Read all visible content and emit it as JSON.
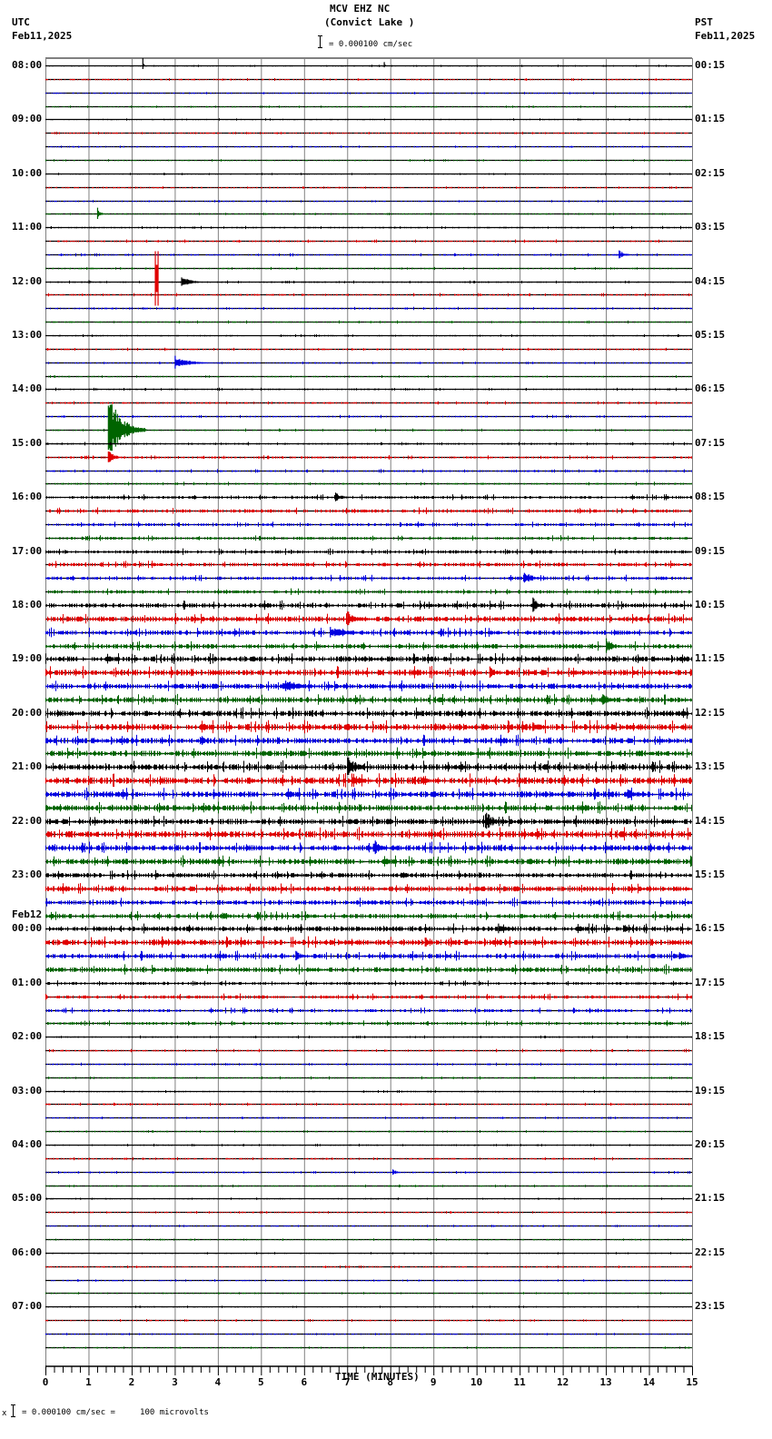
{
  "header": {
    "station": "MCV EHZ NC",
    "location": "(Convict Lake )",
    "left_tz": "UTC",
    "left_date": "Feb11,2025",
    "right_tz": "PST",
    "right_date": "Feb11,2025",
    "scale_text": "= 0.000100 cm/sec"
  },
  "footer": {
    "scale_text": "= 0.000100 cm/sec =     100 microvolts",
    "prefix": "x"
  },
  "colors": {
    "trace_cycle": [
      "#000000",
      "#e00000",
      "#0000e0",
      "#006400"
    ],
    "grid": "#808080",
    "axis": "#000000"
  },
  "chart_data": {
    "type": "line",
    "title": "MCV EHZ NC (Convict Lake )",
    "subtitle": "0.000100 cm/sec per scale bar",
    "xlabel": "TIME (MINUTES)",
    "ylabel": "",
    "xlim": [
      0,
      15
    ],
    "x_ticks": [
      0,
      1,
      2,
      3,
      4,
      5,
      6,
      7,
      8,
      9,
      10,
      11,
      12,
      13,
      14,
      15
    ],
    "minor_tick_step": 0.2,
    "grid": true,
    "traces_per_hour": 4,
    "trace_minutes": 15,
    "left_labels": [
      {
        "row": 0,
        "text": "08:00"
      },
      {
        "row": 4,
        "text": "09:00"
      },
      {
        "row": 8,
        "text": "10:00"
      },
      {
        "row": 12,
        "text": "11:00"
      },
      {
        "row": 16,
        "text": "12:00"
      },
      {
        "row": 20,
        "text": "13:00"
      },
      {
        "row": 24,
        "text": "14:00"
      },
      {
        "row": 28,
        "text": "15:00"
      },
      {
        "row": 32,
        "text": "16:00"
      },
      {
        "row": 36,
        "text": "17:00"
      },
      {
        "row": 40,
        "text": "18:00"
      },
      {
        "row": 44,
        "text": "19:00"
      },
      {
        "row": 48,
        "text": "20:00"
      },
      {
        "row": 52,
        "text": "21:00"
      },
      {
        "row": 56,
        "text": "22:00"
      },
      {
        "row": 60,
        "text": "23:00"
      },
      {
        "row": 64,
        "text": "00:00",
        "date": "Feb12"
      },
      {
        "row": 68,
        "text": "01:00"
      },
      {
        "row": 72,
        "text": "02:00"
      },
      {
        "row": 76,
        "text": "03:00"
      },
      {
        "row": 80,
        "text": "04:00"
      },
      {
        "row": 84,
        "text": "05:00"
      },
      {
        "row": 88,
        "text": "06:00"
      },
      {
        "row": 92,
        "text": "07:00"
      }
    ],
    "right_labels": [
      "00:15",
      "01:15",
      "02:15",
      "03:15",
      "04:15",
      "05:15",
      "06:15",
      "07:15",
      "08:15",
      "09:15",
      "10:15",
      "11:15",
      "12:15",
      "13:15",
      "14:15",
      "15:15",
      "16:15",
      "17:15",
      "18:15",
      "19:15",
      "20:15",
      "21:15",
      "22:15",
      "23:15"
    ],
    "noise_by_hour": [
      0.6,
      0.6,
      0.6,
      0.8,
      0.8,
      0.7,
      0.8,
      1.0,
      1.6,
      1.8,
      2.6,
      3.0,
      3.2,
      3.4,
      3.2,
      2.6,
      2.8,
      1.6,
      0.8,
      0.7,
      0.7,
      0.6,
      0.6,
      0.6
    ],
    "events": [
      {
        "row": 0,
        "minute": 2.25,
        "amp": 12,
        "dur": 0.05,
        "type": "spike"
      },
      {
        "row": 0,
        "minute": 7.85,
        "amp": 6,
        "dur": 0.05,
        "type": "spike"
      },
      {
        "row": 11,
        "minute": 1.2,
        "amp": 7,
        "dur": 0.2,
        "type": "quake"
      },
      {
        "row": 14,
        "minute": 13.3,
        "amp": 5,
        "dur": 0.4,
        "type": "quake"
      },
      {
        "row": 16,
        "minute": 1.0,
        "amp": 4,
        "dur": 0.15,
        "type": "quake"
      },
      {
        "row": 16,
        "minute": 3.15,
        "amp": 7,
        "dur": 0.6,
        "type": "quake"
      },
      {
        "row": 17,
        "minute": 2.55,
        "amp": 60,
        "dur": 0.05,
        "type": "block"
      },
      {
        "row": 22,
        "minute": 3.0,
        "amp": 8,
        "dur": 0.9,
        "type": "quake"
      },
      {
        "row": 27,
        "minute": 1.45,
        "amp": 40,
        "dur": 0.9,
        "type": "quake"
      },
      {
        "row": 29,
        "minute": 1.45,
        "amp": 14,
        "dur": 0.3,
        "type": "quake"
      },
      {
        "row": 32,
        "minute": 6.7,
        "amp": 6,
        "dur": 0.5,
        "type": "quake"
      },
      {
        "row": 38,
        "minute": 11.1,
        "amp": 8,
        "dur": 0.6,
        "type": "quake"
      },
      {
        "row": 40,
        "minute": 11.3,
        "amp": 9,
        "dur": 0.4,
        "type": "quake"
      },
      {
        "row": 41,
        "minute": 7.0,
        "amp": 9,
        "dur": 0.6,
        "type": "quake"
      },
      {
        "row": 42,
        "minute": 6.6,
        "amp": 7,
        "dur": 1.2,
        "type": "quake"
      },
      {
        "row": 43,
        "minute": 13.0,
        "amp": 9,
        "dur": 0.5,
        "type": "quake"
      },
      {
        "row": 45,
        "minute": 10.3,
        "amp": 8,
        "dur": 0.4,
        "type": "quake"
      },
      {
        "row": 46,
        "minute": 5.5,
        "amp": 8,
        "dur": 1.2,
        "type": "quake"
      },
      {
        "row": 47,
        "minute": 12.9,
        "amp": 9,
        "dur": 0.5,
        "type": "quake"
      },
      {
        "row": 49,
        "minute": 11.3,
        "amp": 6,
        "dur": 0.6,
        "type": "quake"
      },
      {
        "row": 50,
        "minute": 3.6,
        "amp": 8,
        "dur": 0.4,
        "type": "quake"
      },
      {
        "row": 52,
        "minute": 7.0,
        "amp": 12,
        "dur": 0.6,
        "type": "quake"
      },
      {
        "row": 53,
        "minute": 7.1,
        "amp": 10,
        "dur": 0.6,
        "type": "quake"
      },
      {
        "row": 53,
        "minute": 8.7,
        "amp": 8,
        "dur": 0.4,
        "type": "quake"
      },
      {
        "row": 54,
        "minute": 13.5,
        "amp": 6,
        "dur": 0.8,
        "type": "quake"
      },
      {
        "row": 56,
        "minute": 10.2,
        "amp": 12,
        "dur": 0.6,
        "type": "quake"
      },
      {
        "row": 58,
        "minute": 7.6,
        "amp": 12,
        "dur": 0.4,
        "type": "quake"
      },
      {
        "row": 63,
        "minute": 4.1,
        "amp": 7,
        "dur": 0.4,
        "type": "quake"
      },
      {
        "row": 64,
        "minute": 10.5,
        "amp": 6,
        "dur": 0.6,
        "type": "quake"
      },
      {
        "row": 64,
        "minute": 13.4,
        "amp": 7,
        "dur": 0.4,
        "type": "quake"
      },
      {
        "row": 65,
        "minute": 2.7,
        "amp": 7,
        "dur": 0.3,
        "type": "quake"
      },
      {
        "row": 65,
        "minute": 8.8,
        "amp": 7,
        "dur": 0.3,
        "type": "quake"
      },
      {
        "row": 66,
        "minute": 5.8,
        "amp": 6,
        "dur": 0.4,
        "type": "quake"
      },
      {
        "row": 66,
        "minute": 14.7,
        "amp": 7,
        "dur": 0.3,
        "type": "quake"
      },
      {
        "row": 82,
        "minute": 8.05,
        "amp": 6,
        "dur": 0.2,
        "type": "quake"
      }
    ]
  }
}
